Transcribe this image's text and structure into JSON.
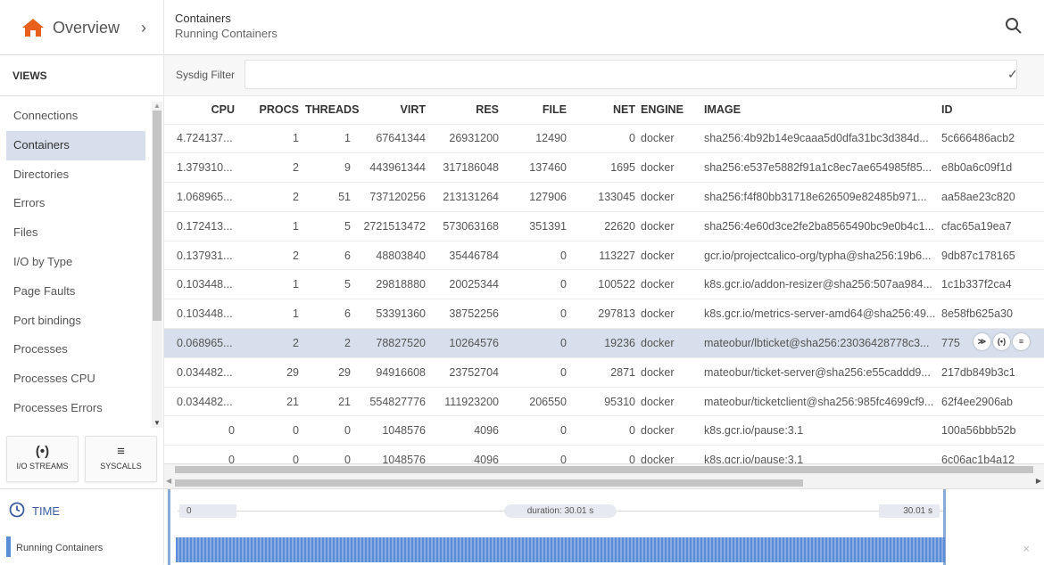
{
  "header": {
    "title": "Overview",
    "breadcrumb_title": "Containers",
    "breadcrumb_subtitle": "Running Containers"
  },
  "sidebar": {
    "section_title": "VIEWS",
    "items": [
      {
        "label": "Connections",
        "active": false
      },
      {
        "label": "Containers",
        "active": true
      },
      {
        "label": "Directories",
        "active": false
      },
      {
        "label": "Errors",
        "active": false
      },
      {
        "label": "Files",
        "active": false
      },
      {
        "label": "I/O by Type",
        "active": false
      },
      {
        "label": "Page Faults",
        "active": false
      },
      {
        "label": "Port bindings",
        "active": false
      },
      {
        "label": "Processes",
        "active": false
      },
      {
        "label": "Processes CPU",
        "active": false
      },
      {
        "label": "Processes Errors",
        "active": false
      }
    ],
    "buttons": [
      {
        "label": "I/O STREAMS",
        "icon": "broadcast-icon",
        "glyph": "(•)"
      },
      {
        "label": "SYSCALLS",
        "icon": "list-icon",
        "glyph": "≡"
      }
    ]
  },
  "filter": {
    "label": "Sysdig Filter",
    "value": "",
    "confirm_glyph": "✓"
  },
  "table": {
    "columns": [
      "CPU",
      "PROCS",
      "THREADS",
      "VIRT",
      "RES",
      "FILE",
      "NET",
      "ENGINE",
      "IMAGE",
      "ID"
    ],
    "rows": [
      [
        "4.724137...",
        "1",
        "1",
        "67641344",
        "26931200",
        "12490",
        "0",
        "docker",
        "sha256:4b92b14e9caaa5d0dfa31bc3d384d...",
        "5c666486acb2"
      ],
      [
        "1.379310...",
        "2",
        "9",
        "443961344",
        "317186048",
        "137460",
        "1695",
        "docker",
        "sha256:e537e5882f91a1c8ec7ae654985f85...",
        "e8b0a6c09f1d"
      ],
      [
        "1.068965...",
        "2",
        "51",
        "737120256",
        "213131264",
        "127906",
        "133045",
        "docker",
        "sha256:f4f80bb31718e626509e82485b971...",
        "aa58ae23c820"
      ],
      [
        "0.172413...",
        "1",
        "5",
        "2721513472",
        "573063168",
        "351391",
        "22620",
        "docker",
        "sha256:4e60d3ce2fe2ba8565490bc9e0b4c1...",
        "cfac65a19ea7"
      ],
      [
        "0.137931...",
        "2",
        "6",
        "48803840",
        "35446784",
        "0",
        "113227",
        "docker",
        "gcr.io/projectcalico-org/typha@sha256:19b6...",
        "9db87c178165"
      ],
      [
        "0.103448...",
        "1",
        "5",
        "29818880",
        "20025344",
        "0",
        "100522",
        "docker",
        "k8s.gcr.io/addon-resizer@sha256:507aa984...",
        "1c1b337f2ca4"
      ],
      [
        "0.103448...",
        "1",
        "6",
        "53391360",
        "38752256",
        "0",
        "297813",
        "docker",
        "k8s.gcr.io/metrics-server-amd64@sha256:49...",
        "8e58fb625a30"
      ],
      [
        "0.068965...",
        "2",
        "2",
        "78827520",
        "10264576",
        "0",
        "19236",
        "docker",
        "mateobur/lbticket@sha256:23036428778c3...",
        "775"
      ],
      [
        "0.034482...",
        "29",
        "29",
        "94916608",
        "23752704",
        "0",
        "2871",
        "docker",
        "mateobur/ticket-server@sha256:e55caddd9...",
        "217db849b3c1"
      ],
      [
        "0.034482...",
        "21",
        "21",
        "554827776",
        "111923200",
        "206550",
        "95310",
        "docker",
        "mateobur/ticketclient@sha256:985fc4699cf9...",
        "62f4ee2906ab"
      ],
      [
        "0",
        "0",
        "0",
        "1048576",
        "4096",
        "0",
        "0",
        "docker",
        "k8s.gcr.io/pause:3.1",
        "100a56bbb52b"
      ],
      [
        "0",
        "0",
        "0",
        "1048576",
        "4096",
        "0",
        "0",
        "docker",
        "k8s.gcr.io/pause:3.1",
        "6c06ac1b4a12"
      ]
    ],
    "selected_row": 7,
    "row_actions": [
      {
        "icon": "chevron-down-circle-icon",
        "glyph": "≫"
      },
      {
        "icon": "broadcast-icon",
        "glyph": "(•)"
      },
      {
        "icon": "list-icon",
        "glyph": "≡"
      }
    ]
  },
  "timeline": {
    "label": "TIME",
    "start": "0",
    "duration": "duration: 30.01 s",
    "end": "30.01 s",
    "track_label": "Running Containers",
    "close_glyph": "×"
  },
  "colors": {
    "accent": "#3a5f9f",
    "home_icon": "#e8601c",
    "selection": "#d6dfeb",
    "trace": "#5b8dd6"
  }
}
